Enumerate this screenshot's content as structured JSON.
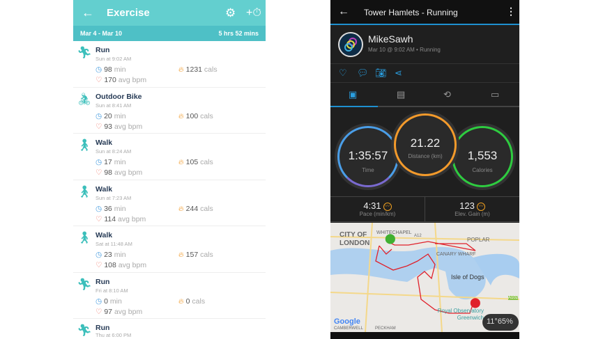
{
  "fitbit": {
    "back_icon": "arrow-left",
    "title": "Exercise",
    "settings_icon": "gear",
    "add_icon": "stopwatch-plus",
    "date_range": "Mar 4 - Mar 10",
    "total": "5 hrs 52 mins",
    "activities": [
      {
        "name": "Run",
        "icon": "run",
        "time": "Sun at 9:02 AM",
        "duration": "98",
        "duration_unit": "min",
        "cals": "1231",
        "cals_unit": "cals",
        "bpm": "170",
        "bpm_unit": "avg bpm"
      },
      {
        "name": "Outdoor Bike",
        "icon": "bike",
        "time": "Sun at 8:41 AM",
        "duration": "20",
        "duration_unit": "min",
        "cals": "100",
        "cals_unit": "cals",
        "bpm": "93",
        "bpm_unit": "avg bpm"
      },
      {
        "name": "Walk",
        "icon": "walk",
        "time": "Sun at 8:24 AM",
        "duration": "17",
        "duration_unit": "min",
        "cals": "105",
        "cals_unit": "cals",
        "bpm": "98",
        "bpm_unit": "avg bpm"
      },
      {
        "name": "Walk",
        "icon": "walk",
        "time": "Sun at 7:23 AM",
        "duration": "36",
        "duration_unit": "min",
        "cals": "244",
        "cals_unit": "cals",
        "bpm": "114",
        "bpm_unit": "avg bpm"
      },
      {
        "name": "Walk",
        "icon": "walk",
        "time": "Sat at 11:48 AM",
        "duration": "23",
        "duration_unit": "min",
        "cals": "157",
        "cals_unit": "cals",
        "bpm": "108",
        "bpm_unit": "avg bpm"
      },
      {
        "name": "Run",
        "icon": "run",
        "time": "Fri at 8:10 AM",
        "duration": "0",
        "duration_unit": "min",
        "cals": "0",
        "cals_unit": "cals",
        "bpm": "97",
        "bpm_unit": "avg bpm"
      },
      {
        "name": "Run",
        "icon": "run",
        "time": "Thu at 6:00 PM",
        "duration": "",
        "duration_unit": "",
        "cals": "",
        "cals_unit": "",
        "bpm": "",
        "bpm_unit": ""
      }
    ]
  },
  "garmin": {
    "title": "Tower Hamlets - Running",
    "user": "MikeSawh",
    "meta": "Mar 10 @ 9:02 AM • Running",
    "time": "1:35:57",
    "time_label": "Time",
    "distance": "21.22",
    "distance_label": "Distance (km)",
    "calories": "1,553",
    "calories_label": "Calories",
    "pace": "4:31",
    "pace_label": "Pace (min/km)",
    "elev": "123",
    "elev_label": "Elev. Gain (m)",
    "map_labels": {
      "city": "CITY OF LONDON",
      "whitechapel": "WHITECHAPEL",
      "poplar": "POPLAR",
      "canary": "CANARY WHARF",
      "isle": "Isle of Dogs",
      "observatory": "Royal Observatory Greenwich",
      "google": "Google",
      "camberwell": "CAMBERWELL",
      "peckham": "PECKHAM",
      "a102": "A102",
      "a12": "A12"
    },
    "temp": "11°65%",
    "colors": {
      "time": "#4a9ee8",
      "distance": "#f39a2b",
      "calories": "#2ecc40",
      "accent": "#1e90d0"
    }
  }
}
